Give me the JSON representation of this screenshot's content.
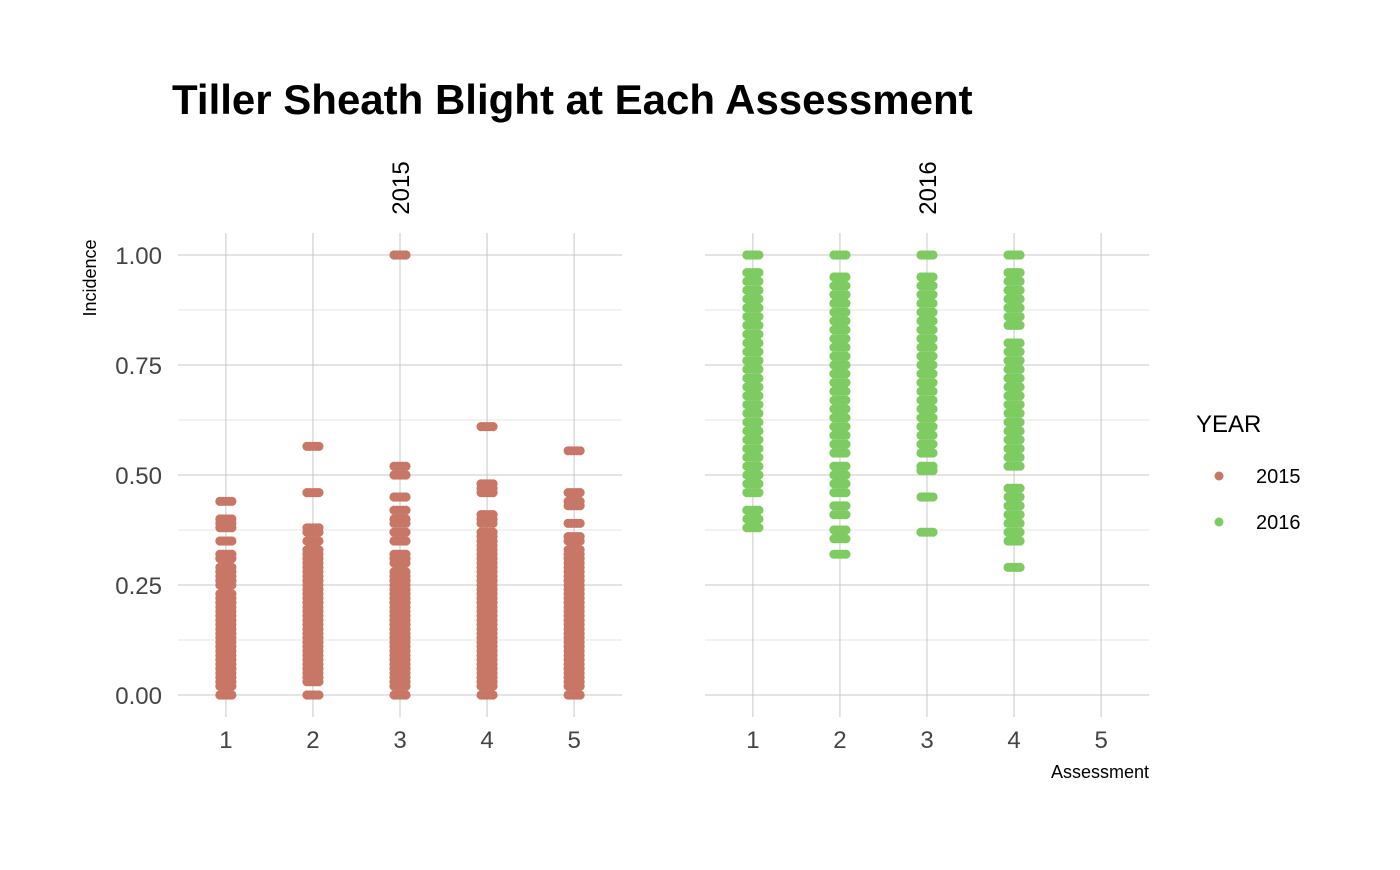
{
  "chart_data": {
    "type": "scatter",
    "title": "Tiller Sheath Blight at Each Assessment",
    "xlabel": "Assessment",
    "ylabel": "Incidence",
    "xlim": [
      0.45,
      5.55
    ],
    "ylim": [
      -0.05,
      1.05
    ],
    "x_ticks": [
      "1",
      "2",
      "3",
      "4",
      "5"
    ],
    "y_ticks": [
      "0.00",
      "0.25",
      "0.50",
      "0.75",
      "1.00"
    ],
    "y_tick_values": [
      0,
      0.25,
      0.5,
      0.75,
      1.0
    ],
    "grid": true,
    "legend": {
      "title": "YEAR",
      "placement": "right",
      "entries": [
        "2015",
        "2016"
      ]
    },
    "facets": [
      {
        "label": "2015",
        "color": "#C87766",
        "points": [
          {
            "x": 1,
            "y": [
              0.0,
              0.02,
              0.03,
              0.04,
              0.05,
              0.06,
              0.07,
              0.08,
              0.09,
              0.1,
              0.11,
              0.12,
              0.13,
              0.14,
              0.15,
              0.16,
              0.17,
              0.18,
              0.19,
              0.2,
              0.21,
              0.22,
              0.23,
              0.25,
              0.26,
              0.27,
              0.28,
              0.29,
              0.31,
              0.32,
              0.35,
              0.38,
              0.39,
              0.4,
              0.44
            ]
          },
          {
            "x": 2,
            "y": [
              0.0,
              0.03,
              0.04,
              0.05,
              0.06,
              0.07,
              0.08,
              0.09,
              0.1,
              0.11,
              0.12,
              0.13,
              0.14,
              0.15,
              0.16,
              0.17,
              0.18,
              0.19,
              0.2,
              0.21,
              0.22,
              0.23,
              0.24,
              0.25,
              0.26,
              0.27,
              0.28,
              0.29,
              0.3,
              0.31,
              0.32,
              0.33,
              0.35,
              0.37,
              0.38,
              0.46,
              0.565
            ]
          },
          {
            "x": 3,
            "y": [
              0.0,
              0.02,
              0.03,
              0.04,
              0.05,
              0.06,
              0.07,
              0.08,
              0.09,
              0.1,
              0.11,
              0.12,
              0.13,
              0.14,
              0.15,
              0.16,
              0.17,
              0.18,
              0.19,
              0.2,
              0.21,
              0.22,
              0.23,
              0.24,
              0.25,
              0.26,
              0.27,
              0.28,
              0.3,
              0.31,
              0.32,
              0.35,
              0.37,
              0.39,
              0.4,
              0.42,
              0.45,
              0.5,
              0.52,
              1.0
            ]
          },
          {
            "x": 4,
            "y": [
              0.0,
              0.02,
              0.03,
              0.04,
              0.05,
              0.06,
              0.07,
              0.08,
              0.09,
              0.1,
              0.11,
              0.12,
              0.13,
              0.14,
              0.15,
              0.16,
              0.17,
              0.18,
              0.19,
              0.2,
              0.21,
              0.22,
              0.23,
              0.24,
              0.25,
              0.26,
              0.27,
              0.28,
              0.29,
              0.3,
              0.31,
              0.32,
              0.33,
              0.34,
              0.35,
              0.36,
              0.37,
              0.39,
              0.4,
              0.41,
              0.46,
              0.47,
              0.48,
              0.61
            ]
          },
          {
            "x": 5,
            "y": [
              0.0,
              0.02,
              0.03,
              0.04,
              0.05,
              0.06,
              0.07,
              0.08,
              0.09,
              0.1,
              0.11,
              0.12,
              0.13,
              0.14,
              0.15,
              0.16,
              0.17,
              0.18,
              0.19,
              0.2,
              0.21,
              0.22,
              0.23,
              0.24,
              0.25,
              0.26,
              0.27,
              0.28,
              0.29,
              0.3,
              0.31,
              0.32,
              0.33,
              0.35,
              0.36,
              0.39,
              0.43,
              0.44,
              0.46,
              0.555
            ]
          }
        ]
      },
      {
        "label": "2016",
        "color": "#7ECB62",
        "points": [
          {
            "x": 1,
            "y": [
              0.38,
              0.4,
              0.42,
              0.46,
              0.48,
              0.5,
              0.52,
              0.54,
              0.56,
              0.58,
              0.6,
              0.62,
              0.64,
              0.66,
              0.68,
              0.7,
              0.72,
              0.74,
              0.76,
              0.78,
              0.8,
              0.82,
              0.84,
              0.86,
              0.88,
              0.9,
              0.92,
              0.94,
              0.96,
              1.0
            ]
          },
          {
            "x": 2,
            "y": [
              0.32,
              0.355,
              0.375,
              0.41,
              0.43,
              0.46,
              0.48,
              0.5,
              0.52,
              0.55,
              0.57,
              0.59,
              0.61,
              0.63,
              0.65,
              0.67,
              0.69,
              0.71,
              0.73,
              0.75,
              0.77,
              0.79,
              0.81,
              0.83,
              0.85,
              0.87,
              0.89,
              0.91,
              0.93,
              0.95,
              1.0
            ]
          },
          {
            "x": 3,
            "y": [
              0.37,
              0.45,
              0.51,
              0.52,
              0.55,
              0.57,
              0.59,
              0.61,
              0.63,
              0.65,
              0.67,
              0.69,
              0.71,
              0.73,
              0.75,
              0.77,
              0.79,
              0.81,
              0.83,
              0.85,
              0.87,
              0.89,
              0.91,
              0.93,
              0.95,
              1.0
            ]
          },
          {
            "x": 4,
            "y": [
              0.29,
              0.35,
              0.37,
              0.39,
              0.41,
              0.43,
              0.45,
              0.47,
              0.52,
              0.54,
              0.56,
              0.58,
              0.6,
              0.62,
              0.64,
              0.66,
              0.68,
              0.7,
              0.72,
              0.74,
              0.76,
              0.78,
              0.8,
              0.84,
              0.86,
              0.88,
              0.9,
              0.92,
              0.94,
              0.96,
              1.0
            ]
          },
          {
            "x": 5,
            "y": []
          }
        ]
      }
    ]
  }
}
